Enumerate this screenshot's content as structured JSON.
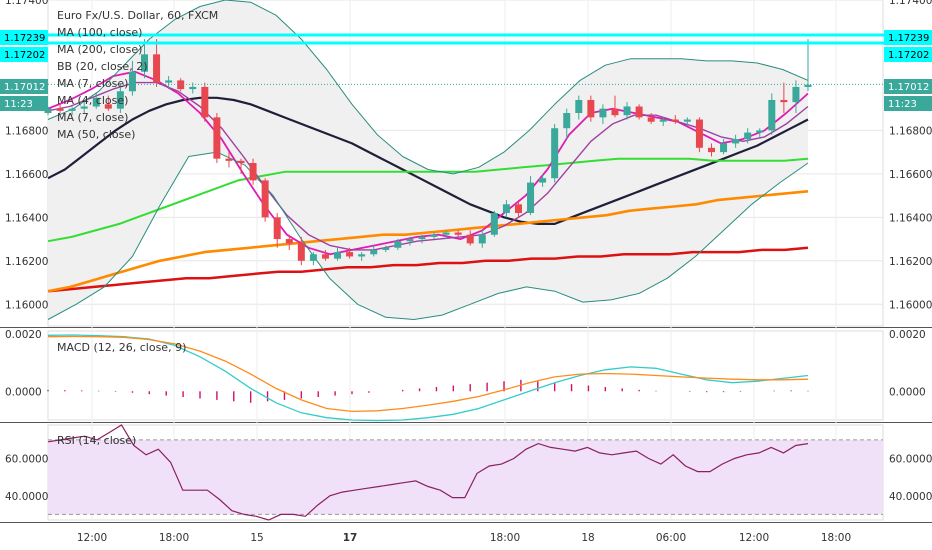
{
  "chart_data": [
    {
      "type": "candlestick",
      "pane": "price",
      "legend": [
        "Euro Fx/U.S. Dollar, 60, FXCM",
        "MA (100, close)",
        "MA (200, close)",
        "BB (20, close, 2)",
        "MA (7, close)",
        "MA (4, close)",
        "MA (7, close)",
        "MA (50, close)"
      ],
      "ylim": [
        1.159,
        1.174
      ],
      "ytick_labels": [
        "1.17400",
        "1.16800",
        "1.16600",
        "1.16400",
        "1.16200",
        "1.16000"
      ],
      "ytick_values": [
        1.174,
        1.168,
        1.166,
        1.164,
        1.162,
        1.16
      ],
      "price_tags": [
        {
          "label": "1.17239",
          "value": 1.17239,
          "color": "#00ffff",
          "text_color": "#000000"
        },
        {
          "label": "1.17202",
          "value": 1.17202,
          "color": "#00ffff",
          "text_color": "#000000"
        },
        {
          "label": "1.17012",
          "value": 1.17012,
          "color": "#3aa89a",
          "text_color": "#ffffff"
        },
        {
          "label": "11:23",
          "value": 1.1694,
          "color": "#3aa89a",
          "text_color": "#ffffff"
        }
      ],
      "horizontal_lines": [
        1.17239,
        1.17202
      ],
      "last_price": 1.17012,
      "candles": [
        {
          "o": 1.1688,
          "h": 1.1691,
          "l": 1.1687,
          "c": 1.169
        },
        {
          "o": 1.169,
          "h": 1.1692,
          "l": 1.1688,
          "c": 1.1689
        },
        {
          "o": 1.1689,
          "h": 1.1691,
          "l": 1.1687,
          "c": 1.169
        },
        {
          "o": 1.169,
          "h": 1.1693,
          "l": 1.1688,
          "c": 1.1691
        },
        {
          "o": 1.1691,
          "h": 1.1697,
          "l": 1.169,
          "c": 1.1695
        },
        {
          "o": 1.1692,
          "h": 1.1696,
          "l": 1.1689,
          "c": 1.169
        },
        {
          "o": 1.169,
          "h": 1.1701,
          "l": 1.1688,
          "c": 1.1698
        },
        {
          "o": 1.1698,
          "h": 1.1712,
          "l": 1.1696,
          "c": 1.1707
        },
        {
          "o": 1.1707,
          "h": 1.1722,
          "l": 1.1704,
          "c": 1.1715
        },
        {
          "o": 1.1715,
          "h": 1.1722,
          "l": 1.17,
          "c": 1.1702
        },
        {
          "o": 1.1702,
          "h": 1.1705,
          "l": 1.1699,
          "c": 1.1703
        },
        {
          "o": 1.1703,
          "h": 1.1704,
          "l": 1.1698,
          "c": 1.1699
        },
        {
          "o": 1.1699,
          "h": 1.1702,
          "l": 1.1697,
          "c": 1.17
        },
        {
          "o": 1.17,
          "h": 1.1702,
          "l": 1.1684,
          "c": 1.1686
        },
        {
          "o": 1.1686,
          "h": 1.1688,
          "l": 1.1665,
          "c": 1.1667
        },
        {
          "o": 1.1667,
          "h": 1.167,
          "l": 1.1663,
          "c": 1.1666
        },
        {
          "o": 1.1666,
          "h": 1.1667,
          "l": 1.166,
          "c": 1.1665
        },
        {
          "o": 1.1665,
          "h": 1.1667,
          "l": 1.1655,
          "c": 1.1657
        },
        {
          "o": 1.1657,
          "h": 1.1658,
          "l": 1.1638,
          "c": 1.164
        },
        {
          "o": 1.164,
          "h": 1.1642,
          "l": 1.1626,
          "c": 1.163
        },
        {
          "o": 1.163,
          "h": 1.1632,
          "l": 1.1625,
          "c": 1.1628
        },
        {
          "o": 1.1628,
          "h": 1.1631,
          "l": 1.1618,
          "c": 1.162
        },
        {
          "o": 1.162,
          "h": 1.1624,
          "l": 1.1618,
          "c": 1.1623
        },
        {
          "o": 1.1623,
          "h": 1.1625,
          "l": 1.162,
          "c": 1.1621
        },
        {
          "o": 1.1621,
          "h": 1.1626,
          "l": 1.162,
          "c": 1.1624
        },
        {
          "o": 1.1624,
          "h": 1.1626,
          "l": 1.1621,
          "c": 1.1622
        },
        {
          "o": 1.1622,
          "h": 1.1624,
          "l": 1.162,
          "c": 1.1623
        },
        {
          "o": 1.1623,
          "h": 1.1627,
          "l": 1.1622,
          "c": 1.1625
        },
        {
          "o": 1.1625,
          "h": 1.1627,
          "l": 1.1624,
          "c": 1.1626
        },
        {
          "o": 1.1626,
          "h": 1.163,
          "l": 1.1625,
          "c": 1.1629
        },
        {
          "o": 1.1629,
          "h": 1.1631,
          "l": 1.1627,
          "c": 1.163
        },
        {
          "o": 1.163,
          "h": 1.1632,
          "l": 1.1628,
          "c": 1.1631
        },
        {
          "o": 1.1631,
          "h": 1.1633,
          "l": 1.163,
          "c": 1.1632
        },
        {
          "o": 1.1632,
          "h": 1.1634,
          "l": 1.163,
          "c": 1.1633
        },
        {
          "o": 1.1633,
          "h": 1.1634,
          "l": 1.1631,
          "c": 1.1632
        },
        {
          "o": 1.1632,
          "h": 1.1634,
          "l": 1.1627,
          "c": 1.1628
        },
        {
          "o": 1.1628,
          "h": 1.1634,
          "l": 1.1626,
          "c": 1.1632
        },
        {
          "o": 1.1632,
          "h": 1.1643,
          "l": 1.1631,
          "c": 1.1642
        },
        {
          "o": 1.1642,
          "h": 1.1648,
          "l": 1.164,
          "c": 1.1646
        },
        {
          "o": 1.1646,
          "h": 1.1648,
          "l": 1.164,
          "c": 1.1642
        },
        {
          "o": 1.1642,
          "h": 1.1659,
          "l": 1.1641,
          "c": 1.1656
        },
        {
          "o": 1.1656,
          "h": 1.166,
          "l": 1.1654,
          "c": 1.1658
        },
        {
          "o": 1.1658,
          "h": 1.1683,
          "l": 1.1656,
          "c": 1.1681
        },
        {
          "o": 1.1681,
          "h": 1.169,
          "l": 1.1676,
          "c": 1.1688
        },
        {
          "o": 1.1688,
          "h": 1.1696,
          "l": 1.1685,
          "c": 1.1694
        },
        {
          "o": 1.1694,
          "h": 1.1696,
          "l": 1.1684,
          "c": 1.1686
        },
        {
          "o": 1.1686,
          "h": 1.1692,
          "l": 1.1683,
          "c": 1.169
        },
        {
          "o": 1.169,
          "h": 1.1696,
          "l": 1.1686,
          "c": 1.1687
        },
        {
          "o": 1.1687,
          "h": 1.1693,
          "l": 1.1685,
          "c": 1.1691
        },
        {
          "o": 1.1691,
          "h": 1.1692,
          "l": 1.1685,
          "c": 1.1686
        },
        {
          "o": 1.1686,
          "h": 1.1688,
          "l": 1.1683,
          "c": 1.1684
        },
        {
          "o": 1.1684,
          "h": 1.1686,
          "l": 1.1682,
          "c": 1.1685
        },
        {
          "o": 1.1685,
          "h": 1.1687,
          "l": 1.1683,
          "c": 1.1684
        },
        {
          "o": 1.1684,
          "h": 1.1686,
          "l": 1.1682,
          "c": 1.1685
        },
        {
          "o": 1.1685,
          "h": 1.1686,
          "l": 1.167,
          "c": 1.1672
        },
        {
          "o": 1.1672,
          "h": 1.1674,
          "l": 1.1668,
          "c": 1.167
        },
        {
          "o": 1.167,
          "h": 1.1676,
          "l": 1.1669,
          "c": 1.1674
        },
        {
          "o": 1.1674,
          "h": 1.1678,
          "l": 1.1672,
          "c": 1.1676
        },
        {
          "o": 1.1676,
          "h": 1.1681,
          "l": 1.1674,
          "c": 1.1679
        },
        {
          "o": 1.1679,
          "h": 1.1681,
          "l": 1.1677,
          "c": 1.168
        },
        {
          "o": 1.168,
          "h": 1.1697,
          "l": 1.1678,
          "c": 1.1694
        },
        {
          "o": 1.1694,
          "h": 1.1702,
          "l": 1.1688,
          "c": 1.1693
        },
        {
          "o": 1.1693,
          "h": 1.1703,
          "l": 1.1688,
          "c": 1.17
        },
        {
          "o": 1.17,
          "h": 1.1722,
          "l": 1.1698,
          "c": 1.1701
        }
      ],
      "series": [
        {
          "name": "MA (100, close)",
          "color": "#1f1f3a",
          "values": [
            1.1658,
            1.1662,
            1.1668,
            1.1674,
            1.168,
            1.1685,
            1.1689,
            1.1692,
            1.1694,
            1.1695,
            1.1695,
            1.1694,
            1.1692,
            1.1689,
            1.1686,
            1.1683,
            1.168,
            1.1677,
            1.1674,
            1.167,
            1.1666,
            1.1662,
            1.1658,
            1.1654,
            1.165,
            1.1646,
            1.1643,
            1.164,
            1.1638,
            1.1637,
            1.1637,
            1.164,
            1.1643,
            1.1646,
            1.1649,
            1.1652,
            1.1655,
            1.1658,
            1.1661,
            1.1664,
            1.1667,
            1.167,
            1.1673,
            1.1677,
            1.1681,
            1.1685
          ]
        },
        {
          "name": "MA (200, close)",
          "color": "#dd1111",
          "values": [
            1.1606,
            1.1607,
            1.1608,
            1.1609,
            1.161,
            1.1611,
            1.1612,
            1.1612,
            1.1613,
            1.1614,
            1.1615,
            1.1615,
            1.1616,
            1.1617,
            1.1617,
            1.1618,
            1.1618,
            1.1619,
            1.1619,
            1.162,
            1.162,
            1.1621,
            1.1621,
            1.1622,
            1.1622,
            1.1623,
            1.1623,
            1.1623,
            1.1624,
            1.1624,
            1.1624,
            1.1625,
            1.1625,
            1.1626
          ]
        },
        {
          "name": "MA (50, close)",
          "color": "#33dd33",
          "values": [
            1.1629,
            1.1631,
            1.1634,
            1.1637,
            1.1641,
            1.1645,
            1.1649,
            1.1653,
            1.1657,
            1.1659,
            1.1661,
            1.1661,
            1.1661,
            1.1661,
            1.1661,
            1.1661,
            1.1661,
            1.1661,
            1.1661,
            1.1662,
            1.1663,
            1.1664,
            1.1665,
            1.1666,
            1.1667,
            1.1667,
            1.1667,
            1.1667,
            1.1666,
            1.1666,
            1.1666,
            1.1666,
            1.1667
          ]
        },
        {
          "name": "MA (7, close)",
          "color": "#ff8a00",
          "values": [
            1.1606,
            1.1608,
            1.1611,
            1.1614,
            1.1617,
            1.162,
            1.1622,
            1.1624,
            1.1625,
            1.1626,
            1.1627,
            1.1628,
            1.1629,
            1.163,
            1.1631,
            1.1632,
            1.1632,
            1.1633,
            1.1634,
            1.1635,
            1.1636,
            1.1637,
            1.1638,
            1.1639,
            1.164,
            1.1641,
            1.1643,
            1.1644,
            1.1645,
            1.1646,
            1.1648,
            1.1649,
            1.165,
            1.1651,
            1.1652
          ]
        },
        {
          "name": "MA (4, close)",
          "color": "#e01ab5",
          "values": [
            1.169,
            1.1694,
            1.1699,
            1.1705,
            1.1707,
            1.1703,
            1.1697,
            1.1688,
            1.1676,
            1.166,
            1.1645,
            1.1632,
            1.1626,
            1.1623,
            1.1625,
            1.1627,
            1.1629,
            1.1631,
            1.1632,
            1.163,
            1.1634,
            1.1642,
            1.165,
            1.1662,
            1.1678,
            1.1688,
            1.169,
            1.1688,
            1.1686,
            1.1684,
            1.1679,
            1.1674,
            1.1676,
            1.168,
            1.1688,
            1.1697
          ]
        },
        {
          "name": "MA (7, close)",
          "color": "#a040a0",
          "values": [
            1.1689,
            1.1691,
            1.1695,
            1.1699,
            1.1702,
            1.1702,
            1.1698,
            1.1691,
            1.1681,
            1.1668,
            1.1654,
            1.1641,
            1.1632,
            1.1627,
            1.1625,
            1.1625,
            1.1627,
            1.1629,
            1.163,
            1.1631,
            1.1632,
            1.1636,
            1.1642,
            1.1651,
            1.1663,
            1.1675,
            1.1683,
            1.1687,
            1.1687,
            1.1684,
            1.1681,
            1.1677,
            1.1675,
            1.1677,
            1.1683,
            1.1691
          ]
        },
        {
          "name": "BB upper",
          "color": "#2a8c80",
          "values": [
            1.1685,
            1.169,
            1.1698,
            1.171,
            1.1722,
            1.1731,
            1.1737,
            1.174,
            1.1739,
            1.1733,
            1.1722,
            1.1708,
            1.1692,
            1.1678,
            1.1668,
            1.1662,
            1.166,
            1.1663,
            1.167,
            1.168,
            1.1692,
            1.1703,
            1.171,
            1.1713,
            1.1713,
            1.1713,
            1.1712,
            1.1712,
            1.1711,
            1.1708,
            1.1703
          ]
        },
        {
          "name": "BB lower",
          "color": "#2a8c80",
          "values": [
            1.1593,
            1.16,
            1.1608,
            1.1622,
            1.1646,
            1.1668,
            1.167,
            1.1664,
            1.165,
            1.163,
            1.1612,
            1.16,
            1.1594,
            1.1593,
            1.1595,
            1.16,
            1.1605,
            1.1608,
            1.1606,
            1.1601,
            1.1602,
            1.1605,
            1.1612,
            1.1622,
            1.1634,
            1.1646,
            1.1656,
            1.1665
          ]
        }
      ]
    },
    {
      "type": "line",
      "pane": "macd",
      "legend": "MACD (12, 26, close, 9)",
      "ylim": [
        -0.001,
        0.0021
      ],
      "ytick_labels": [
        "0.0020",
        "0.0000"
      ],
      "ytick_values": [
        0.002,
        0.0
      ],
      "series": [
        {
          "name": "MACD",
          "color": "#33cccc",
          "values": [
            0.00195,
            0.00196,
            0.00194,
            0.0019,
            0.00182,
            0.0016,
            0.0012,
            0.0007,
            0.0001,
            -0.0004,
            -0.00075,
            -0.00092,
            -0.001,
            -0.00102,
            -0.001,
            -0.00092,
            -0.0008,
            -0.0006,
            -0.0003,
            0.0,
            0.0003,
            0.00055,
            0.00075,
            0.00085,
            0.0008,
            0.0006,
            0.0004,
            0.0003,
            0.00035,
            0.00045,
            0.00055
          ]
        },
        {
          "name": "Signal",
          "color": "#ff8c1a",
          "values": [
            0.0019,
            0.00191,
            0.0019,
            0.00188,
            0.0018,
            0.00165,
            0.0014,
            0.00105,
            0.0006,
            0.0001,
            -0.0003,
            -0.0006,
            -0.0007,
            -0.00068,
            -0.0006,
            -0.00048,
            -0.00035,
            -0.00018,
            5e-05,
            0.0003,
            0.0005,
            0.0006,
            0.00062,
            0.0006,
            0.00055,
            0.0005,
            0.00046,
            0.00042,
            0.0004,
            0.0004,
            0.00042
          ]
        }
      ],
      "histogram": [
        5e-05,
        4e-05,
        3e-05,
        2e-05,
        -2e-05,
        -5e-05,
        -0.0001,
        -0.00015,
        -0.0002,
        -0.00025,
        -0.0003,
        -0.00035,
        -0.0004,
        -0.00035,
        -0.0003,
        -0.00025,
        -0.0002,
        -0.00015,
        -0.0001,
        -5e-05,
        0.0,
        5e-05,
        0.0001,
        0.00015,
        0.0002,
        0.00025,
        0.0003,
        0.00035,
        0.0004,
        0.00035,
        0.0003,
        0.00025,
        0.0002,
        0.00015,
        0.0001,
        5e-05,
        2e-05,
        0.0,
        -2e-05,
        -3e-05,
        -3e-05,
        -2e-05,
        0.0,
        2e-05,
        3e-05,
        2e-05
      ]
    },
    {
      "type": "line",
      "pane": "rsi",
      "legend": "RSI (14, close)",
      "ylim": [
        27,
        78
      ],
      "ytick_labels": [
        "60.0000",
        "40.0000"
      ],
      "ytick_values": [
        60,
        40
      ],
      "bands": [
        30,
        70
      ],
      "series": [
        {
          "name": "RSI",
          "color": "#8a2060",
          "values": [
            69,
            70,
            71,
            72,
            70,
            74,
            78,
            67,
            62,
            65,
            58,
            43,
            43,
            43,
            38,
            32,
            30,
            29,
            27,
            30,
            30,
            29,
            35,
            40,
            42,
            43,
            44,
            45,
            46,
            47,
            48,
            45,
            43,
            39,
            39,
            52,
            56,
            57,
            60,
            65,
            68,
            66,
            65,
            64,
            66,
            63,
            62,
            63,
            64,
            60,
            57,
            62,
            56,
            53,
            53,
            57,
            60,
            62,
            63,
            66,
            63,
            67,
            68
          ]
        }
      ]
    }
  ],
  "x_axis": {
    "tick_labels": [
      "12:00",
      "18:00",
      "15",
      "17",
      "18:00",
      "18",
      "06:00",
      "12:00",
      "18:00"
    ],
    "bold": [
      false,
      false,
      false,
      true,
      false,
      false,
      false,
      false,
      false
    ]
  },
  "colors": {
    "bull": "#3aa89a",
    "bear": "#e8474f",
    "bb_fill": "#f0f0f0",
    "rsi_fill": "#f0e0f8",
    "grid": "#e6e6e6"
  }
}
